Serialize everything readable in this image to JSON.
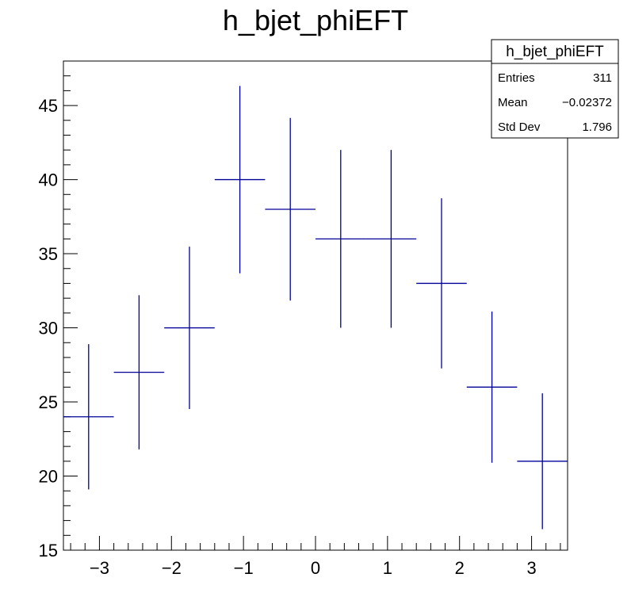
{
  "chart_data": {
    "type": "histogram",
    "title": "h_bjet_phiEFT",
    "xlabel": "",
    "ylabel": "",
    "xlim": [
      -3.5,
      3.5
    ],
    "ylim": [
      15,
      48
    ],
    "grid": false,
    "bin_edges": [
      -3.5,
      -2.8,
      -2.1,
      -1.4,
      -0.7,
      0.0,
      0.7,
      1.4,
      2.1,
      2.8,
      3.5
    ],
    "bins": [
      {
        "center": -3.15,
        "xlow": -3.5,
        "xhigh": -2.8,
        "value": 24,
        "err": 4.9
      },
      {
        "center": -2.45,
        "xlow": -2.8,
        "xhigh": -2.1,
        "value": 27,
        "err": 5.2
      },
      {
        "center": -1.75,
        "xlow": -2.1,
        "xhigh": -1.4,
        "value": 30,
        "err": 5.48
      },
      {
        "center": -1.05,
        "xlow": -1.4,
        "xhigh": -0.7,
        "value": 40,
        "err": 6.32
      },
      {
        "center": -0.35,
        "xlow": -0.7,
        "xhigh": 0.0,
        "value": 38,
        "err": 6.16
      },
      {
        "center": 0.35,
        "xlow": 0.0,
        "xhigh": 0.7,
        "value": 36,
        "err": 6.0
      },
      {
        "center": 1.05,
        "xlow": 0.7,
        "xhigh": 1.4,
        "value": 36,
        "err": 6.0
      },
      {
        "center": 1.75,
        "xlow": 1.4,
        "xhigh": 2.1,
        "value": 33,
        "err": 5.74
      },
      {
        "center": 2.45,
        "xlow": 2.1,
        "xhigh": 2.8,
        "value": 26,
        "err": 5.1
      },
      {
        "center": 3.15,
        "xlow": 2.8,
        "xhigh": 3.5,
        "value": 21,
        "err": 4.58
      }
    ],
    "x_ticks": [
      -3,
      -2,
      -1,
      0,
      1,
      2,
      3
    ],
    "x_tick_labels": [
      "−3",
      "−2",
      "−1",
      "0",
      "1",
      "2",
      "3"
    ],
    "y_ticks": [
      15,
      20,
      25,
      30,
      35,
      40,
      45
    ],
    "y_tick_labels": [
      "15",
      "20",
      "25",
      "30",
      "35",
      "40",
      "45"
    ],
    "series_color": "#000099",
    "stats_box": {
      "title": "h_bjet_phiEFT",
      "rows": [
        {
          "label": "Entries",
          "value": "311"
        },
        {
          "label": "Mean",
          "value": "−0.02372"
        },
        {
          "label": "Std Dev",
          "value": "1.796"
        }
      ]
    }
  }
}
